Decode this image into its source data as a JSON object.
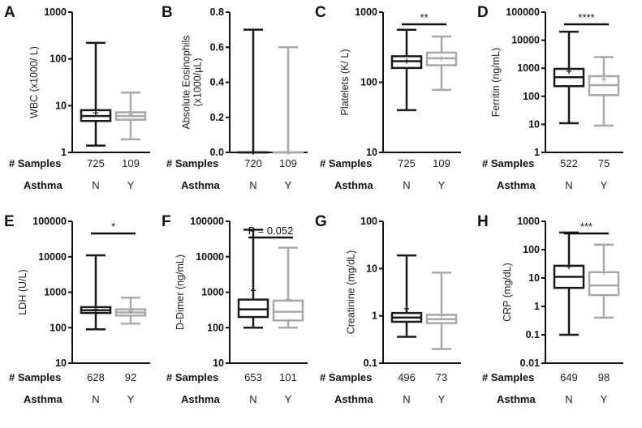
{
  "row_labels": {
    "samples": "# Samples",
    "asthma": "Asthma"
  },
  "colors": {
    "N": "#1a1a1a",
    "Y": "#a8a8a8"
  },
  "chart_data": [
    {
      "type": "box",
      "panel": "A",
      "ylabel": [
        "WBC (x1000/  L)"
      ],
      "scale": "log",
      "ylim": [
        1,
        1000
      ],
      "yticks": [
        1,
        10,
        100,
        1000
      ],
      "ytick_labels": [
        "1",
        "10",
        "100",
        "1000"
      ],
      "categories": [
        "N",
        "Y"
      ],
      "samples": [
        "725",
        "109"
      ],
      "significance": "",
      "boxes": [
        {
          "min": 1.4,
          "q1": 4.7,
          "median": 6,
          "q3": 8,
          "max": 220,
          "mean": 7
        },
        {
          "min": 1.9,
          "q1": 5,
          "median": 6,
          "q3": 7.2,
          "max": 19,
          "mean": 6.5
        }
      ]
    },
    {
      "type": "box",
      "panel": "B",
      "ylabel": [
        "Absolute Eosinophils",
        "(x1000/µL)"
      ],
      "scale": "linear",
      "ylim": [
        0,
        0.8
      ],
      "yticks": [
        0,
        0.2,
        0.4,
        0.6,
        0.8
      ],
      "ytick_labels": [
        "0.0",
        "0.2",
        "0.4",
        "0.6",
        "0.8"
      ],
      "categories": [
        "N",
        "Y"
      ],
      "samples": [
        "720",
        "109"
      ],
      "significance": "",
      "boxes": [
        {
          "min": 0,
          "q1": 0,
          "median": 0,
          "q3": 0,
          "max": 0.7,
          "mean": 0
        },
        {
          "min": 0,
          "q1": 0,
          "median": 0,
          "q3": 0,
          "max": 0.6,
          "mean": 0
        }
      ]
    },
    {
      "type": "box",
      "panel": "C",
      "ylabel": [
        "Platelets (K/  L)"
      ],
      "scale": "log",
      "ylim": [
        10,
        1000
      ],
      "yticks": [
        10,
        100,
        1000
      ],
      "ytick_labels": [
        "10",
        "100",
        "1000"
      ],
      "categories": [
        "N",
        "Y"
      ],
      "samples": [
        "725",
        "109"
      ],
      "significance": "**",
      "boxes": [
        {
          "min": 40,
          "q1": 160,
          "median": 200,
          "q3": 235,
          "max": 560,
          "mean": 200
        },
        {
          "min": 78,
          "q1": 175,
          "median": 220,
          "q3": 265,
          "max": 450,
          "mean": 220
        }
      ]
    },
    {
      "type": "box",
      "panel": "D",
      "ylabel": [
        "Ferritin (ng/mL)"
      ],
      "scale": "log",
      "ylim": [
        1,
        100000
      ],
      "yticks": [
        1,
        10,
        100,
        1000,
        10000,
        100000
      ],
      "ytick_labels": [
        "1",
        "10",
        "100",
        "1000",
        "10000",
        "100000"
      ],
      "categories": [
        "N",
        "Y"
      ],
      "samples": [
        "522",
        "75"
      ],
      "significance": "****",
      "boxes": [
        {
          "min": 11,
          "q1": 230,
          "median": 480,
          "q3": 950,
          "max": 20000,
          "mean": 780
        },
        {
          "min": 9,
          "q1": 110,
          "median": 250,
          "q3": 520,
          "max": 2500,
          "mean": 400
        }
      ]
    },
    {
      "type": "box",
      "panel": "E",
      "ylabel": [
        "LDH (U/L)"
      ],
      "scale": "log",
      "ylim": [
        10,
        100000
      ],
      "yticks": [
        10,
        100,
        1000,
        10000,
        100000
      ],
      "ytick_labels": [
        "10",
        "100",
        "1000",
        "10000",
        "100000"
      ],
      "categories": [
        "N",
        "Y"
      ],
      "samples": [
        "628",
        "92"
      ],
      "significance": "*",
      "boxes": [
        {
          "min": 90,
          "q1": 260,
          "median": 310,
          "q3": 380,
          "max": 11000,
          "mean": 320
        },
        {
          "min": 130,
          "q1": 220,
          "median": 270,
          "q3": 330,
          "max": 700,
          "mean": 290
        }
      ]
    },
    {
      "type": "box",
      "panel": "F",
      "ylabel": [
        "D-Dimer (ng/mL)"
      ],
      "scale": "log",
      "ylim": [
        10,
        100000
      ],
      "yticks": [
        10,
        100,
        1000,
        10000,
        100000
      ],
      "ytick_labels": [
        "10",
        "100",
        "1000",
        "10000",
        "100000"
      ],
      "categories": [
        "N",
        "Y"
      ],
      "samples": [
        "653",
        "101"
      ],
      "significance": "P = 0.052",
      "boxes": [
        {
          "min": 100,
          "q1": 200,
          "median": 330,
          "q3": 620,
          "max": 58000,
          "mean": 1100
        },
        {
          "min": 100,
          "q1": 160,
          "median": 280,
          "q3": 580,
          "max": 18000,
          "mean": 620
        }
      ]
    },
    {
      "type": "box",
      "panel": "G",
      "ylabel": [
        "Creatinine (mg/dL)"
      ],
      "scale": "log",
      "ylim": [
        0.1,
        100
      ],
      "yticks": [
        0.1,
        1,
        10,
        100
      ],
      "ytick_labels": [
        "0.1",
        "1",
        "10",
        "100"
      ],
      "categories": [
        "N",
        "Y"
      ],
      "samples": [
        "496",
        "73"
      ],
      "significance": "",
      "boxes": [
        {
          "min": 0.36,
          "q1": 0.75,
          "median": 0.92,
          "q3": 1.15,
          "max": 19,
          "mean": 1.4
        },
        {
          "min": 0.2,
          "q1": 0.7,
          "median": 0.85,
          "q3": 1.05,
          "max": 8.2,
          "mean": 1.0
        }
      ]
    },
    {
      "type": "box",
      "panel": "H",
      "ylabel": [
        "CRP (mg/dL)"
      ],
      "scale": "log",
      "ylim": [
        0.01,
        1000
      ],
      "yticks": [
        0.01,
        0.1,
        1,
        10,
        100,
        1000
      ],
      "ytick_labels": [
        "0.01",
        "0.1",
        "1",
        "10",
        "100",
        "1000"
      ],
      "categories": [
        "N",
        "Y"
      ],
      "samples": [
        "649",
        "98"
      ],
      "significance": "***",
      "boxes": [
        {
          "min": 0.1,
          "q1": 4.5,
          "median": 11,
          "q3": 27,
          "max": 400,
          "mean": 25
        },
        {
          "min": 0.4,
          "q1": 2.5,
          "median": 5.5,
          "q3": 16,
          "max": 150,
          "mean": 16
        }
      ]
    }
  ]
}
